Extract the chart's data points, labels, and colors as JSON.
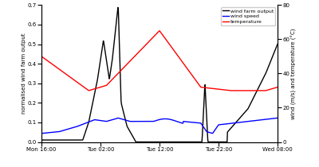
{
  "ylabel_left": "normalised wind farm output",
  "ylabel_right": "wind (m/s) and temperature (°C)",
  "xtick_labels": [
    "Mon 16:00",
    "Tue 02:00",
    "Tue 12:00",
    "Tue 22:00",
    "Wed 08:00"
  ],
  "yticks_left": [
    0.0,
    0.1,
    0.2,
    0.3,
    0.4,
    0.5,
    0.6,
    0.7
  ],
  "yticks_right": [
    0,
    20,
    40,
    60,
    80
  ],
  "ylim_left": [
    0.0,
    0.7
  ],
  "ylim_right": [
    0,
    80
  ],
  "xlim": [
    0,
    40
  ],
  "xtick_pos": [
    0,
    10,
    20,
    30,
    40
  ],
  "legend_labels": [
    "wind farm output",
    "wind speed",
    "temperature"
  ],
  "legend_colors": [
    "black",
    "blue",
    "red"
  ],
  "line_width": 1.0,
  "tick_fontsize": 5,
  "ylabel_fontsize": 5,
  "legend_fontsize": 4.5
}
